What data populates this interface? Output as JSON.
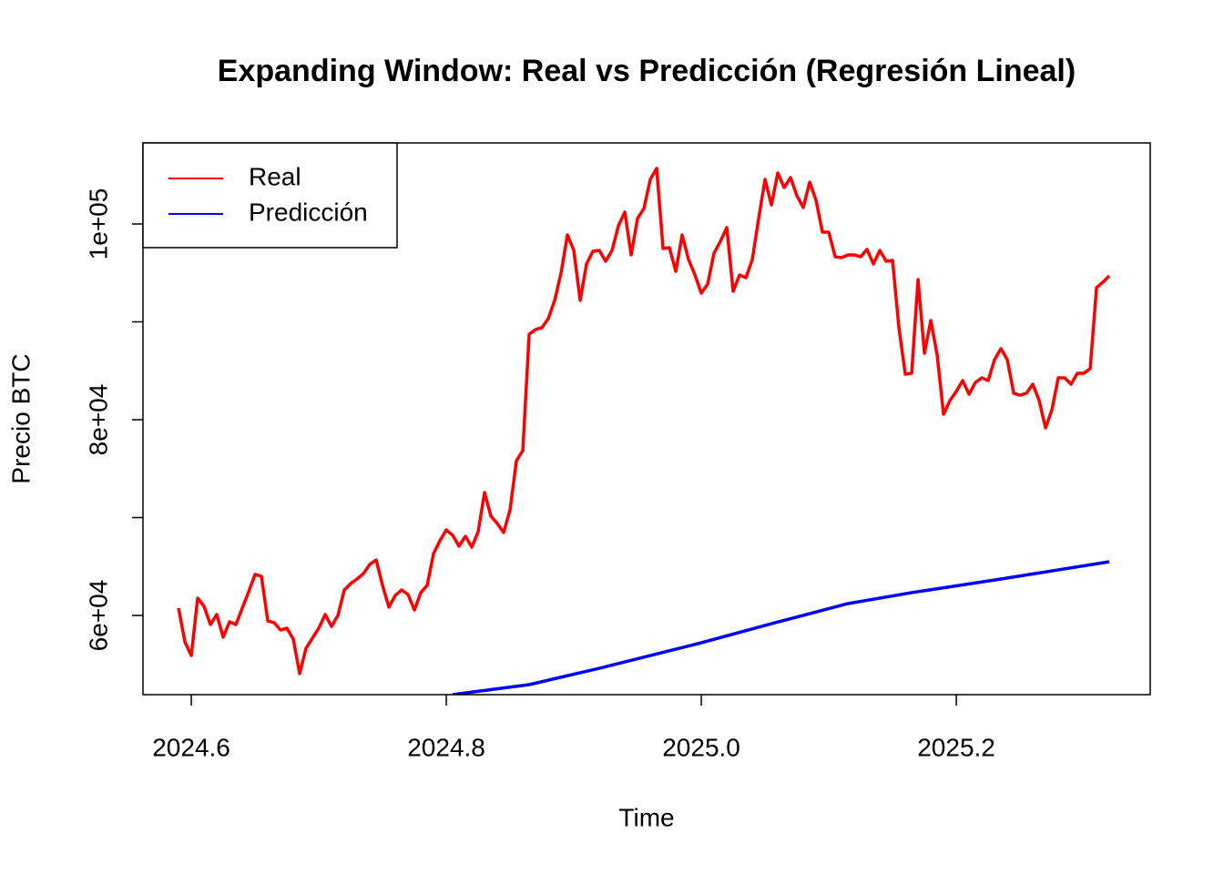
{
  "chart_data": {
    "type": "line",
    "title": "Expanding Window: Real vs Predicción (Regresión Lineal)",
    "x_label": "Time",
    "y_label": "Precio BTC",
    "xlim": [
      2024.5621,
      2025.3521
    ],
    "ylim": [
      51907,
      108279
    ],
    "xticks": [
      2024.6,
      2024.8,
      {
        "value": 2025,
        "label": "2025.0"
      },
      2025.2
    ],
    "yticks": [
      {
        "value": 60000,
        "label": "6e+04"
      },
      {
        "value": 70000,
        "label": null
      },
      {
        "value": 80000,
        "label": "8e+04"
      },
      {
        "value": 90000,
        "label": null
      },
      {
        "value": 100000,
        "label": "1e+05"
      }
    ],
    "grid": false,
    "legend": "topleft",
    "x": [
      2024.59,
      2024.595,
      2024.6,
      2024.605,
      2024.61,
      2024.615,
      2024.62,
      2024.625,
      2024.63,
      2024.635,
      2024.64,
      2024.645,
      2024.65,
      2024.655,
      2024.66,
      2024.665,
      2024.67,
      2024.675,
      2024.68,
      2024.685,
      2024.69,
      2024.695,
      2024.7,
      2024.705,
      2024.71,
      2024.715,
      2024.72,
      2024.725,
      2024.73,
      2024.735,
      2024.74,
      2024.745,
      2024.75,
      2024.755,
      2024.76,
      2024.765,
      2024.77,
      2024.775,
      2024.78,
      2024.785,
      2024.79,
      2024.795,
      2024.8,
      2024.805,
      2024.81,
      2024.815,
      2024.82,
      2024.825,
      2024.83,
      2024.835,
      2024.84,
      2024.845,
      2024.85,
      2024.855,
      2024.86,
      2024.865,
      2024.87,
      2024.875,
      2024.88,
      2024.885,
      2024.89,
      2024.895,
      2024.9,
      2024.905,
      2024.91,
      2024.915,
      2024.92,
      2024.925,
      2024.93,
      2024.935,
      2024.94,
      2024.945,
      2024.95,
      2024.955,
      2024.96,
      2024.965,
      2024.97,
      2024.975,
      2024.98,
      2024.985,
      2024.99,
      2024.995,
      2025.0,
      2025.005,
      2025.01,
      2025.015,
      2025.02,
      2025.025,
      2025.03,
      2025.035,
      2025.04,
      2025.045,
      2025.05,
      2025.055,
      2025.06,
      2025.065,
      2025.07,
      2025.075,
      2025.08,
      2025.085,
      2025.09,
      2025.095,
      2025.1,
      2025.105,
      2025.11,
      2025.115,
      2025.12,
      2025.125,
      2025.13,
      2025.135,
      2025.14,
      2025.145,
      2025.15,
      2025.155,
      2025.16,
      2025.165,
      2025.17,
      2025.175,
      2025.18,
      2025.185,
      2025.19,
      2025.195,
      2025.2,
      2025.205,
      2025.21,
      2025.215,
      2025.22,
      2025.225,
      2025.23,
      2025.235,
      2025.24,
      2025.245,
      2025.25,
      2025.255,
      2025.26,
      2025.265,
      2025.27,
      2025.275,
      2025.28,
      2025.285,
      2025.29,
      2025.295,
      2025.3,
      2025.305,
      2025.31,
      2025.315,
      2025.32
    ],
    "series": [
      {
        "name": "Real",
        "color": "#ff0000",
        "values": [
          60750,
          57300,
          55900,
          61770,
          60930,
          59070,
          60100,
          57770,
          59350,
          59070,
          60750,
          62420,
          64190,
          64000,
          59440,
          59260,
          58510,
          58700,
          57580,
          54050,
          56650,
          57680,
          58700,
          60100,
          58880,
          60000,
          62600,
          63260,
          63720,
          64280,
          65210,
          65670,
          63070,
          60840,
          62050,
          62600,
          62140,
          60560,
          62330,
          63070,
          66330,
          67630,
          68740,
          68190,
          67070,
          68090,
          66980,
          68560,
          72560,
          70140,
          69400,
          68470,
          70790,
          75810,
          76840,
          88740,
          89210,
          89400,
          90330,
          92190,
          94980,
          98880,
          97300,
          92190,
          95910,
          97210,
          97300,
          96190,
          97300,
          99810,
          101210,
          96840,
          100560,
          101580,
          104560,
          105680,
          97490,
          97580,
          95160,
          98880,
          96370,
          94790,
          92930,
          93860,
          97020,
          98230,
          99630,
          93120,
          94790,
          94510,
          96370,
          100560,
          104560,
          101950,
          105210,
          103720,
          104740,
          102880,
          101680,
          104280,
          102420,
          99160,
          99160,
          96650,
          96560,
          96840,
          96840,
          96650,
          97400,
          95910,
          97300,
          96190,
          96280,
          89400,
          84650,
          84750,
          94330,
          86790,
          90140,
          86600,
          80560,
          81950,
          82880,
          84000,
          82600,
          83810,
          84280,
          84000,
          86140,
          87260,
          86140,
          82700,
          82510,
          82700,
          83630,
          81950,
          79160,
          81020,
          84280,
          84280,
          83630,
          84750,
          84750,
          85210,
          93490,
          94050,
          94700
        ]
      },
      {
        "name": "Predicción",
        "color": "#0000ff",
        "x": [
          2024.805,
          2024.865,
          2024.92,
          2025.0,
          2025.055,
          2025.115,
          2025.165,
          2025.235,
          2025.32
        ],
        "values": [
          51910,
          52930,
          54600,
          57210,
          59160,
          61210,
          62330,
          63720,
          65490
        ]
      }
    ]
  }
}
